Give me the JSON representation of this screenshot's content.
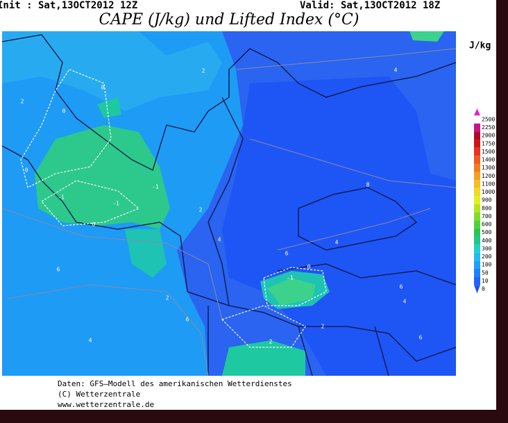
{
  "header": {
    "init": "Init : Sat,13OCT2012 12Z",
    "valid": "Valid: Sat,13OCT2012 18Z",
    "title": "CAPE (J/kg) und Lifted Index (°C)"
  },
  "colorbar": {
    "unit": "J/kg",
    "labels": [
      "2500",
      "2250",
      "2000",
      "1750",
      "1500",
      "1400",
      "1300",
      "1200",
      "1100",
      "1000",
      "900",
      "800",
      "700",
      "600",
      "500",
      "400",
      "300",
      "200",
      "100",
      "50",
      "10",
      "0"
    ],
    "colors": [
      "#e61ed2",
      "#c8148c",
      "#b40a28",
      "#d21414",
      "#e6321e",
      "#f05a1e",
      "#f07d1e",
      "#f5a01e",
      "#f5be1e",
      "#f0dc1e",
      "#e6f01e",
      "#b4e61e",
      "#82dc28",
      "#50d23c",
      "#28c850",
      "#1ec88c",
      "#1ed2c8",
      "#1ebef0",
      "#1ea0ff",
      "#1e82ff",
      "#1e64ff",
      "#1e50f0"
    ]
  },
  "contour_labels": [
    "0",
    "0",
    "0",
    "-1",
    "-1",
    "-1",
    "0",
    "2",
    "2",
    "4",
    "4",
    "2",
    "6",
    "-1",
    "0",
    "2",
    "6",
    "4",
    "8",
    "6",
    "4",
    "2",
    "6",
    "4",
    "6",
    "2"
  ],
  "footer": [
    "Daten: GFS–Modell des amerikanischen Wetterdienstes",
    "(C) Wetterzentrale",
    "www.wetterzentrale.de"
  ]
}
